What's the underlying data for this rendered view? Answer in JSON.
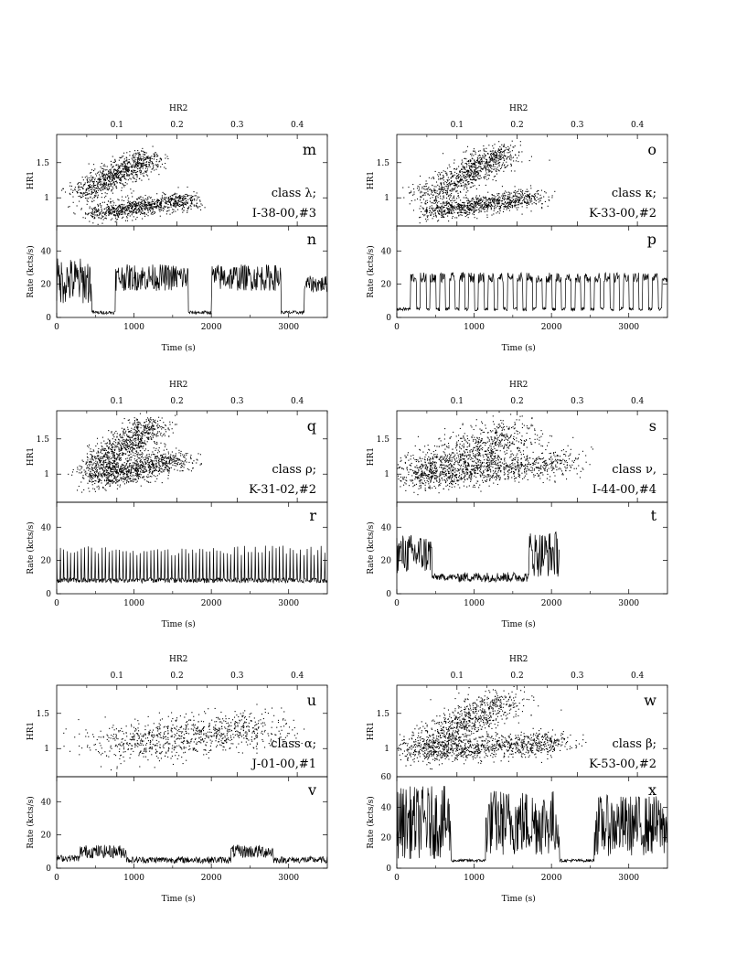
{
  "chart_data": [
    {
      "type": "scatter",
      "panel": "m",
      "xlabel": "HR2",
      "ylabel": "HR1",
      "xlim": [
        0,
        0.45
      ],
      "ylim": [
        0.6,
        1.9
      ],
      "xticks": [
        "0.1",
        "0.2",
        "0.3",
        "0.4"
      ],
      "yticks": [
        "1",
        "1.5"
      ],
      "class_label": "class λ;",
      "obs_label": "I-38-00,#3",
      "clusters": [
        {
          "x0": 0.04,
          "y0": 1.05,
          "x1": 0.15,
          "y1": 1.58,
          "spread": 0.018
        },
        {
          "x0": 0.06,
          "y0": 0.78,
          "x1": 0.22,
          "y1": 0.98,
          "spread": 0.016
        }
      ]
    },
    {
      "type": "line",
      "panel": "n",
      "xlabel": "Time (s)",
      "ylabel": "Rate (kcts/s)",
      "xlim": [
        0,
        3500
      ],
      "ylim": [
        0,
        55
      ],
      "xticks": [
        "0",
        "1000",
        "2000",
        "3000"
      ],
      "yticks": [
        "0",
        "20",
        "40"
      ],
      "segments": [
        {
          "x": [
            0,
            450
          ],
          "level": 22,
          "var": 14
        },
        {
          "x": [
            450,
            760
          ],
          "level": 3,
          "var": 1
        },
        {
          "x": [
            760,
            1700
          ],
          "level": 24,
          "var": 8
        },
        {
          "x": [
            1700,
            2000
          ],
          "level": 3,
          "var": 1
        },
        {
          "x": [
            2000,
            2900
          ],
          "level": 24,
          "var": 8
        },
        {
          "x": [
            2900,
            3200
          ],
          "level": 3,
          "var": 1
        },
        {
          "x": [
            3200,
            3500
          ],
          "level": 20,
          "var": 5
        }
      ]
    },
    {
      "type": "scatter",
      "panel": "o",
      "xlabel": "HR2",
      "ylabel": "HR1",
      "xlim": [
        0,
        0.45
      ],
      "ylim": [
        0.6,
        1.9
      ],
      "xticks": [
        "0.1",
        "0.2",
        "0.3",
        "0.4"
      ],
      "yticks": [
        "1",
        "1.5"
      ],
      "class_label": "class κ;",
      "obs_label": "K-33-00,#2",
      "clusters": [
        {
          "x0": 0.05,
          "y0": 1.0,
          "x1": 0.18,
          "y1": 1.68,
          "spread": 0.02
        },
        {
          "x0": 0.05,
          "y0": 0.8,
          "x1": 0.23,
          "y1": 1.02,
          "spread": 0.016
        }
      ]
    },
    {
      "type": "line",
      "panel": "p",
      "xlabel": "Time (s)",
      "ylabel": "Rate (kcts/s)",
      "xlim": [
        0,
        3500
      ],
      "ylim": [
        0,
        55
      ],
      "xticks": [
        "0",
        "1000",
        "2000",
        "3000"
      ],
      "yticks": [
        "0",
        "20",
        "40"
      ],
      "oscillation": {
        "start": 180,
        "period": 125,
        "high": 24,
        "low": 4
      }
    },
    {
      "type": "scatter",
      "panel": "q",
      "xlabel": "HR2",
      "ylabel": "HR1",
      "xlim": [
        0,
        0.45
      ],
      "ylim": [
        0.6,
        1.9
      ],
      "xticks": [
        "0.1",
        "0.2",
        "0.3",
        "0.4"
      ],
      "yticks": [
        "1",
        "1.5"
      ],
      "class_label": "class ρ;",
      "obs_label": "K-31-02,#2",
      "clusters": [
        {
          "x0": 0.06,
          "y0": 1.05,
          "x1": 0.16,
          "y1": 1.72,
          "spread": 0.02
        },
        {
          "x0": 0.06,
          "y0": 0.92,
          "x1": 0.2,
          "y1": 1.22,
          "spread": 0.02
        }
      ]
    },
    {
      "type": "line",
      "panel": "r",
      "xlabel": "Time (s)",
      "ylabel": "Rate (kcts/s)",
      "xlim": [
        0,
        3500
      ],
      "ylim": [
        0,
        55
      ],
      "xticks": [
        "0",
        "1000",
        "2000",
        "3000"
      ],
      "yticks": [
        "0",
        "20",
        "40"
      ],
      "spikes": {
        "period": 45,
        "high": 26,
        "low": 8
      }
    },
    {
      "type": "scatter",
      "panel": "s",
      "xlabel": "HR2",
      "ylabel": "HR1",
      "xlim": [
        0,
        0.45
      ],
      "ylim": [
        0.6,
        1.9
      ],
      "xticks": [
        "0.1",
        "0.2",
        "0.3",
        "0.4"
      ],
      "yticks": [
        "1",
        "1.5"
      ],
      "class_label": "class ν,",
      "obs_label": "I-44-00,#4",
      "clusters": [
        {
          "x0": 0.02,
          "y0": 0.95,
          "x1": 0.2,
          "y1": 1.62,
          "spread": 0.03
        },
        {
          "x0": 0.02,
          "y0": 0.95,
          "x1": 0.28,
          "y1": 1.18,
          "spread": 0.025
        }
      ]
    },
    {
      "type": "line",
      "panel": "t",
      "xlabel": "Time (s)",
      "ylabel": "Rate (kcts/s)",
      "xlim": [
        0,
        3500
      ],
      "ylim": [
        0,
        55
      ],
      "xticks": [
        "0",
        "1000",
        "2000",
        "3000"
      ],
      "yticks": [
        "0",
        "20",
        "40"
      ],
      "segments": [
        {
          "x": [
            0,
            450
          ],
          "level": 24,
          "var": 12
        },
        {
          "x": [
            450,
            800
          ],
          "level": 10,
          "var": 2
        },
        {
          "x": [
            800,
            1700
          ],
          "level": 10,
          "var": 3
        },
        {
          "x": [
            1700,
            2100
          ],
          "level": 24,
          "var": 14
        }
      ]
    },
    {
      "type": "scatter",
      "panel": "u",
      "xlabel": "HR2",
      "ylabel": "HR1",
      "xlim": [
        0,
        0.45
      ],
      "ylim": [
        0.6,
        1.9
      ],
      "xticks": [
        "0.1",
        "0.2",
        "0.3",
        "0.4"
      ],
      "yticks": [
        "1",
        "1.5"
      ],
      "class_label": "class α;",
      "obs_label": "J-01-00,#1",
      "clusters": [
        {
          "x0": 0.08,
          "y0": 1.05,
          "x1": 0.35,
          "y1": 1.32,
          "spread": 0.035
        }
      ]
    },
    {
      "type": "line",
      "panel": "v",
      "xlabel": "Time (s)",
      "ylabel": "Rate (kcts/s)",
      "xlim": [
        0,
        3500
      ],
      "ylim": [
        0,
        55
      ],
      "xticks": [
        "0",
        "1000",
        "2000",
        "3000"
      ],
      "yticks": [
        "0",
        "20",
        "40"
      ],
      "segments": [
        {
          "x": [
            0,
            300
          ],
          "level": 6,
          "var": 2
        },
        {
          "x": [
            300,
            900
          ],
          "level": 10,
          "var": 4
        },
        {
          "x": [
            900,
            2250
          ],
          "level": 5,
          "var": 2
        },
        {
          "x": [
            2250,
            2800
          ],
          "level": 10,
          "var": 4
        },
        {
          "x": [
            2800,
            3500
          ],
          "level": 5,
          "var": 2
        }
      ]
    },
    {
      "type": "scatter",
      "panel": "w",
      "xlabel": "HR2",
      "ylabel": "HR1",
      "xlim": [
        0,
        0.45
      ],
      "ylim": [
        0.6,
        1.9
      ],
      "xticks": [
        "0.1",
        "0.2",
        "0.3",
        "0.4"
      ],
      "yticks": [
        "1",
        "1.5"
      ],
      "class_label": "class β;",
      "obs_label": "K-53-00,#2",
      "clusters": [
        {
          "x0": 0.03,
          "y0": 0.95,
          "x1": 0.18,
          "y1": 1.72,
          "spread": 0.025
        },
        {
          "x0": 0.03,
          "y0": 0.95,
          "x1": 0.27,
          "y1": 1.1,
          "spread": 0.02
        }
      ]
    },
    {
      "type": "line",
      "panel": "x",
      "xlabel": "Time (s)",
      "ylabel": "Rate (kcts/s)",
      "xlim": [
        0,
        3500
      ],
      "ylim": [
        0,
        60
      ],
      "xticks": [
        "0",
        "1000",
        "2000",
        "3000"
      ],
      "yticks": [
        "0",
        "20",
        "40",
        "60"
      ],
      "segments": [
        {
          "x": [
            0,
            700
          ],
          "level": 30,
          "var": 24
        },
        {
          "x": [
            700,
            1150
          ],
          "level": 5,
          "var": 1
        },
        {
          "x": [
            1150,
            2100
          ],
          "level": 30,
          "var": 22
        },
        {
          "x": [
            2100,
            2550
          ],
          "level": 5,
          "var": 1
        },
        {
          "x": [
            2550,
            3500
          ],
          "level": 28,
          "var": 20
        }
      ]
    }
  ]
}
